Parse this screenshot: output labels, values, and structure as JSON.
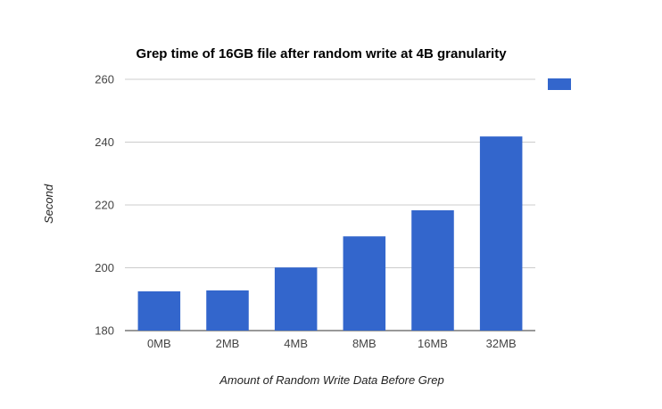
{
  "chart_data": {
    "type": "bar",
    "title": "Grep time of 16GB file after random write at 4B granularity",
    "xlabel": "Amount of Random Write Data Before Grep",
    "ylabel": "Second",
    "categories": [
      "0MB",
      "2MB",
      "4MB",
      "8MB",
      "16MB",
      "32MB"
    ],
    "series": [
      {
        "values": [
          192.5,
          192.8,
          200.1,
          210.0,
          218.3,
          241.8
        ],
        "color": "#3366cc"
      }
    ],
    "ylim": [
      180,
      260
    ],
    "yticks": [
      180,
      200,
      220,
      240,
      260
    ],
    "grid": true,
    "legend": "top-right"
  }
}
